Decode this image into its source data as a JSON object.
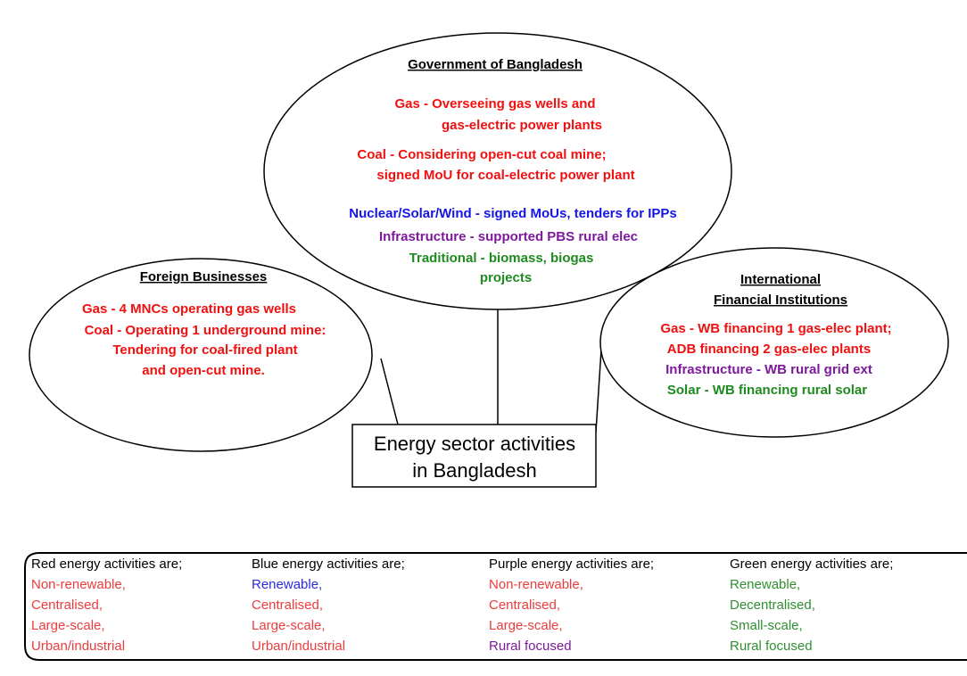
{
  "government": {
    "title": "Government of Bangladesh",
    "lines": [
      "Gas - Overseeing gas wells and",
      "gas-electric power plants",
      "Coal - Considering open-cut coal mine;",
      "signed MoU for coal-electric power plant",
      "Nuclear/Solar/Wind - signed MoUs, tenders for IPPs",
      "Infrastructure - supported PBS rural elec",
      "Traditional - biomass, biogas",
      "projects"
    ]
  },
  "foreign_businesses": {
    "title": "Foreign Businesses",
    "lines": [
      "Gas - 4 MNCs operating gas wells",
      "Coal - Operating 1 underground mine:",
      "Tendering for coal-fired plant",
      "and open-cut mine."
    ]
  },
  "international_financial_institutions": {
    "title": [
      "International",
      "Financial Institutions"
    ],
    "lines": [
      "Gas - WB financing 1 gas-elec plant;",
      "ADB financing 2 gas-elec plants",
      "Infrastructure - WB rural grid ext",
      "Solar - WB financing rural solar"
    ]
  },
  "center": {
    "lines": [
      "Energy sector activities",
      "in Bangladesh"
    ]
  },
  "legend": {
    "columns": [
      {
        "heading": "Red energy activities are;",
        "items": [
          "Non-renewable,",
          "Centralised,",
          "Large-scale,",
          "Urban/industrial"
        ]
      },
      {
        "heading": "Blue energy activities are;",
        "items": [
          "Renewable,",
          "Centralised,",
          "Large-scale,",
          "Urban/industrial"
        ]
      },
      {
        "heading": "Purple energy activities are;",
        "items": [
          "Non-renewable,",
          "Centralised,",
          "Large-scale,",
          "Rural focused"
        ]
      },
      {
        "heading": "Green energy activities are;",
        "items": [
          "Renewable,",
          "Decentralised,",
          "Small-scale,",
          "Rural focused"
        ]
      }
    ]
  }
}
